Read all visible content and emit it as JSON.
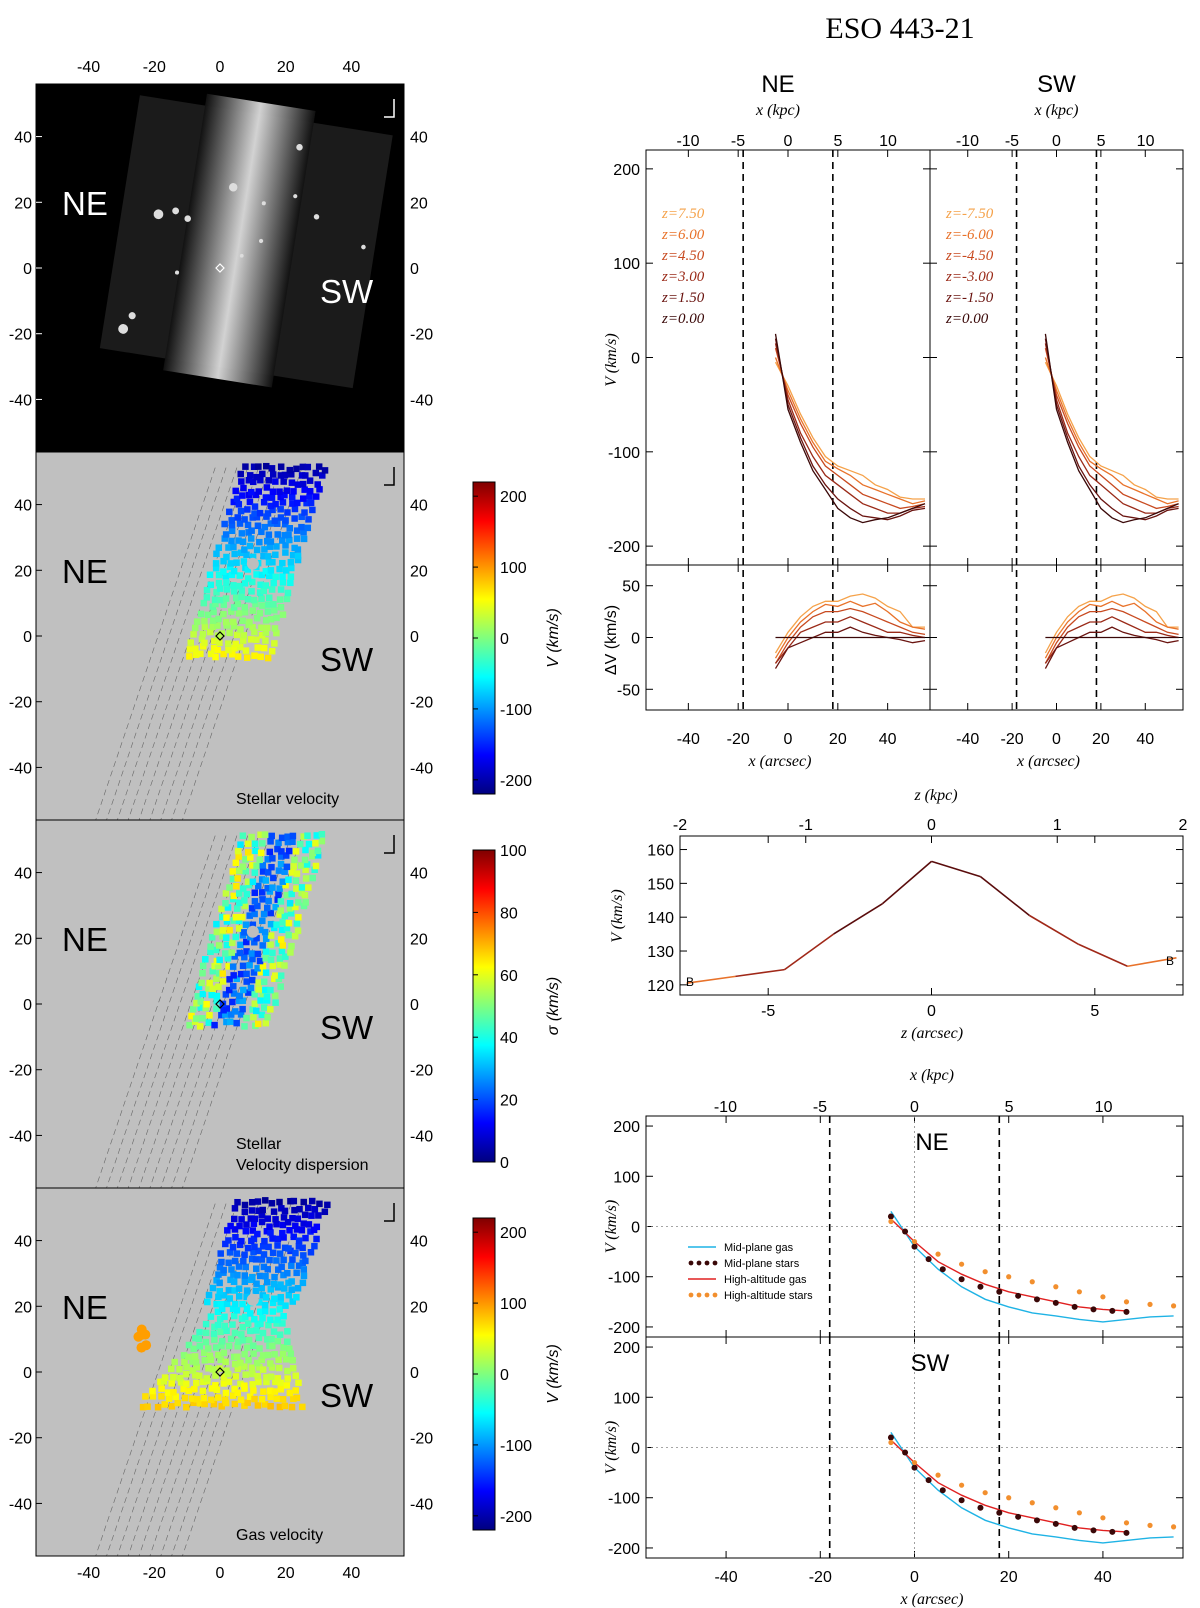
{
  "figure_title": "ESO 443-21",
  "left_maps": {
    "x_ticks": [
      -40,
      -20,
      0,
      20,
      40
    ],
    "y_ticks": [
      40,
      20,
      0,
      -20,
      -40
    ],
    "side_labels": [
      "NE",
      "SW"
    ],
    "panels": [
      {
        "name": "image",
        "caption": ""
      },
      {
        "name": "stellar-velocity",
        "caption": "Stellar velocity",
        "colorbar_label": "V (km/s)",
        "colorbar_ticks": [
          200,
          100,
          0,
          -100,
          -200
        ],
        "range": [
          -220,
          220
        ]
      },
      {
        "name": "stellar-dispersion",
        "caption_line1": "Stellar",
        "caption_line2": "Velocity dispersion",
        "colorbar_label": "σ (km/s)",
        "colorbar_ticks": [
          100,
          80,
          60,
          40,
          20,
          0
        ],
        "range": [
          0,
          100
        ]
      },
      {
        "name": "gas-velocity",
        "caption": "Gas velocity",
        "colorbar_label": "V (km/s)",
        "colorbar_ticks": [
          200,
          100,
          0,
          -100,
          -200
        ],
        "range": [
          -220,
          220
        ]
      }
    ]
  },
  "colors": {
    "map_bg": "#c0c0c0",
    "orange": "#f28f2e",
    "cyan": "#1fb3e5",
    "red": "#e02020",
    "darkred": "#400000"
  },
  "chart_data": [
    {
      "type": "line",
      "name": "rotation-curves-by-height",
      "panels": [
        "NE",
        "SW"
      ],
      "top_xlabel": "x (kpc)",
      "top_x_ticks": [
        -10,
        -5,
        0,
        5,
        10
      ],
      "xlabel": "x (arcsec)",
      "x_ticks": [
        -40,
        -20,
        0,
        20,
        40
      ],
      "xlim": [
        -57,
        57
      ],
      "ylabel_top": "V (km/s)",
      "ylim_top": [
        -220,
        220
      ],
      "y_ticks_top": [
        200,
        100,
        0,
        -100,
        -200
      ],
      "ylabel_bottom": "ΔV (km/s)",
      "ylim_bottom": [
        -70,
        70
      ],
      "y_ticks_bottom": [
        50,
        0,
        -50
      ],
      "vlines": [
        -18,
        18
      ],
      "legend_NE": [
        "z=7.50",
        "z=6.00",
        "z=4.50",
        "z=3.00",
        "z=1.50",
        "z=0.00"
      ],
      "legend_SW": [
        "z=-7.50",
        "z=-6.00",
        "z=-4.50",
        "z=-3.00",
        "z=-1.50",
        "z=0.00"
      ],
      "series": [
        {
          "color": "#f5a24a",
          "x": [
            -5,
            0,
            5,
            10,
            15,
            20,
            25,
            30,
            35,
            40,
            45,
            50,
            55
          ],
          "v": [
            -5,
            -30,
            -60,
            -85,
            -105,
            -115,
            -120,
            -125,
            -135,
            -140,
            -148,
            -150,
            -150
          ],
          "dv": [
            -15,
            5,
            20,
            30,
            35,
            35,
            40,
            42,
            38,
            30,
            25,
            10,
            10
          ]
        },
        {
          "color": "#e8722a",
          "x": [
            -5,
            0,
            5,
            10,
            15,
            20,
            25,
            30,
            35,
            40,
            45,
            50,
            55
          ],
          "v": [
            0,
            -35,
            -65,
            -90,
            -110,
            -118,
            -125,
            -135,
            -140,
            -145,
            -150,
            -155,
            -152
          ],
          "dv": [
            -20,
            0,
            15,
            25,
            32,
            30,
            35,
            30,
            33,
            25,
            15,
            10,
            8
          ]
        },
        {
          "color": "#c84a20",
          "x": [
            -5,
            0,
            5,
            10,
            15,
            20,
            25,
            30,
            35,
            40,
            45,
            50,
            55
          ],
          "v": [
            10,
            -40,
            -70,
            -95,
            -115,
            -125,
            -135,
            -145,
            -150,
            -155,
            -160,
            -158,
            -155
          ],
          "dv": [
            -25,
            -5,
            10,
            20,
            25,
            25,
            28,
            25,
            20,
            15,
            10,
            5,
            3
          ]
        },
        {
          "color": "#9a2a18",
          "x": [
            -5,
            0,
            5,
            10,
            15,
            20,
            25,
            30,
            35,
            40,
            45,
            50,
            55
          ],
          "v": [
            15,
            -45,
            -80,
            -105,
            -125,
            -135,
            -145,
            -155,
            -160,
            -165,
            -165,
            -160,
            -158
          ],
          "dv": [
            -25,
            -10,
            5,
            10,
            15,
            15,
            20,
            15,
            10,
            5,
            5,
            2,
            0
          ]
        },
        {
          "color": "#6a1410",
          "x": [
            -5,
            0,
            5,
            10,
            15,
            20,
            25,
            30,
            35,
            40,
            45,
            50,
            55
          ],
          "v": [
            20,
            -50,
            -85,
            -115,
            -135,
            -150,
            -160,
            -168,
            -170,
            -172,
            -168,
            -162,
            -160
          ],
          "dv": [
            -30,
            -10,
            -5,
            0,
            5,
            5,
            10,
            5,
            2,
            0,
            -2,
            -5,
            -3
          ]
        },
        {
          "color": "#3a0808",
          "x": [
            -5,
            0,
            5,
            10,
            15,
            20,
            25,
            30,
            35,
            40,
            45,
            50,
            55
          ],
          "v": [
            25,
            -55,
            -90,
            -120,
            -140,
            -160,
            -170,
            -175,
            -172,
            -170,
            -165,
            -160,
            -155
          ],
          "dv": [
            0,
            0,
            0,
            0,
            0,
            0,
            0,
            0,
            0,
            0,
            0,
            0,
            0
          ]
        }
      ]
    },
    {
      "type": "line",
      "name": "velocity-vs-height",
      "top_xlabel": "z (kpc)",
      "top_x_ticks": [
        -2,
        -1,
        0,
        1,
        2
      ],
      "xlabel": "z (arcsec)",
      "x_ticks": [
        -5,
        0,
        5
      ],
      "xlim": [
        -7.7,
        7.7
      ],
      "ylabel": "V (km/s)",
      "ylim": [
        117,
        164
      ],
      "y_ticks": [
        160,
        150,
        140,
        130,
        120
      ],
      "x": [
        -7.5,
        -6,
        -4.5,
        -3,
        -1.5,
        0,
        1.5,
        3,
        4.5,
        6,
        7.5
      ],
      "values": [
        120.5,
        122.5,
        124.5,
        135,
        144,
        156.5,
        152,
        140.5,
        132,
        125.5,
        128
      ],
      "end_labels": [
        "B",
        "B"
      ]
    },
    {
      "type": "line",
      "name": "gas-vs-stars-rotation",
      "panels": [
        "NE",
        "SW"
      ],
      "top_xlabel": "x (kpc)",
      "top_x_ticks": [
        -10,
        -5,
        0,
        5,
        10
      ],
      "xlabel": "x (arcsec)",
      "x_ticks": [
        -40,
        -20,
        0,
        20,
        40
      ],
      "xlim": [
        -57,
        57
      ],
      "ylabel": "V (km/s)",
      "ylim": [
        -220,
        220
      ],
      "y_ticks": [
        200,
        100,
        0,
        -100,
        -200
      ],
      "vlines": [
        -18,
        18
      ],
      "legend": [
        "Mid-plane gas",
        "Mid-plane stars",
        "High-altitude gas",
        "High-altitude stars"
      ],
      "series": [
        {
          "name": "Mid-plane gas",
          "color": "#1fb3e5",
          "x": [
            -5,
            0,
            5,
            10,
            15,
            20,
            25,
            30,
            35,
            40,
            45,
            50,
            55
          ],
          "values": [
            30,
            -40,
            -85,
            -120,
            -145,
            -160,
            -172,
            -178,
            -185,
            -190,
            -185,
            -180,
            -178
          ]
        },
        {
          "name": "Mid-plane stars",
          "color": "#3a0808",
          "x": [
            -5,
            -2,
            0,
            3,
            6,
            10,
            14,
            18,
            22,
            26,
            30,
            34,
            38,
            42,
            45
          ],
          "values": [
            20,
            -10,
            -40,
            -65,
            -85,
            -105,
            -120,
            -130,
            -138,
            -145,
            -152,
            -160,
            -165,
            -168,
            -170
          ]
        },
        {
          "name": "High-altitude gas",
          "color": "#e02020",
          "x": [
            -5,
            0,
            5,
            10,
            15,
            20,
            25,
            30,
            35,
            40,
            45
          ],
          "values": [
            15,
            -30,
            -70,
            -95,
            -115,
            -130,
            -140,
            -150,
            -160,
            -165,
            -168
          ]
        },
        {
          "name": "High-altitude stars",
          "color": "#f28f2e",
          "x": [
            -5,
            0,
            5,
            10,
            15,
            20,
            25,
            30,
            35,
            40,
            45,
            50,
            55
          ],
          "values": [
            10,
            -30,
            -55,
            -75,
            -90,
            -100,
            -110,
            -120,
            -130,
            -140,
            -150,
            -155,
            -158
          ]
        }
      ]
    }
  ]
}
